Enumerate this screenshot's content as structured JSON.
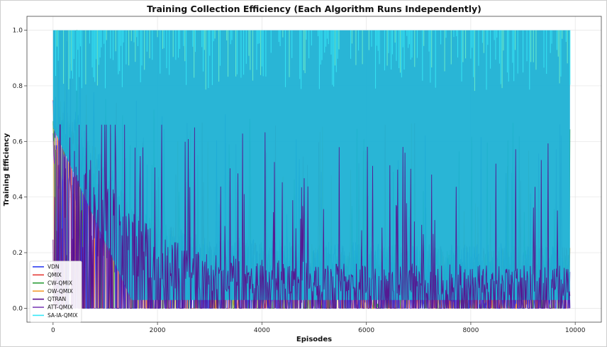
{
  "chart_data": {
    "type": "line",
    "title": "Training Collection Efficiency (Each Algorithm Runs Independently)",
    "xlabel": "Episodes",
    "ylabel": "Training Efficiency",
    "xlim": [
      -500,
      10500
    ],
    "ylim": [
      -0.05,
      1.05
    ],
    "xticks": [
      0,
      2000,
      4000,
      6000,
      8000,
      10000
    ],
    "xtick_labels": [
      "0",
      "2000",
      "4000",
      "6000",
      "8000",
      "10000"
    ],
    "yticks": [
      0.0,
      0.2,
      0.4,
      0.6,
      0.8,
      1.0
    ],
    "ytick_labels": [
      "0.0",
      "0.2",
      "0.4",
      "0.6",
      "0.8",
      "1.0"
    ],
    "grid": true,
    "legend_position": "lower-left",
    "episodes": 9900,
    "series": [
      {
        "name": "VDN",
        "color": "#2b3cf0",
        "trend": {
          "x": [
            0,
            500,
            1000,
            1500,
            2000,
            3000,
            5000,
            9900
          ],
          "y": [
            0.66,
            0.6,
            0.45,
            0.3,
            0.2,
            0.15,
            0.13,
            0.12
          ]
        }
      },
      {
        "name": "QMIX",
        "color": "#e53935",
        "trend": {
          "x": [
            0,
            500,
            1000,
            1500,
            2000,
            3000,
            5000,
            9900
          ],
          "y": [
            0.66,
            0.55,
            0.4,
            0.28,
            0.2,
            0.14,
            0.12,
            0.12
          ]
        }
      },
      {
        "name": "CW-QMIX",
        "color": "#2e9e3a",
        "trend": {
          "x": [
            0,
            500,
            1000,
            1500,
            2000,
            3000,
            5000,
            9900
          ],
          "y": [
            0.62,
            0.55,
            0.42,
            0.3,
            0.2,
            0.14,
            0.12,
            0.12
          ]
        }
      },
      {
        "name": "OW-QMIX",
        "color": "#f39c32",
        "trend": {
          "x": [
            0,
            500,
            1000,
            1500,
            2000,
            3000,
            5000,
            9900
          ],
          "y": [
            0.66,
            0.58,
            0.42,
            0.3,
            0.2,
            0.14,
            0.12,
            0.12
          ]
        }
      },
      {
        "name": "QTRAN",
        "color": "#5a0a8c",
        "trend": {
          "x": [
            0,
            500,
            1000,
            1500,
            2000,
            3000,
            5000,
            9900
          ],
          "y": [
            0.62,
            0.55,
            0.45,
            0.33,
            0.24,
            0.18,
            0.15,
            0.14
          ]
        }
      },
      {
        "name": "ATT-QMIX",
        "color": "#7d3fb8",
        "trend": {
          "x": [
            0,
            500,
            1000,
            1500,
            2000,
            3000,
            5000,
            9900
          ],
          "y": [
            0.55,
            0.45,
            0.35,
            0.25,
            0.18,
            0.14,
            0.12,
            0.12
          ]
        }
      },
      {
        "name": "SA-IA-QMIX",
        "color": "#37e8f7",
        "trend": {
          "x": [
            0,
            500,
            1000,
            2000,
            4000,
            6000,
            8000,
            9900
          ],
          "y": [
            0.85,
            0.8,
            0.78,
            0.75,
            0.74,
            0.74,
            0.74,
            0.74
          ]
        }
      }
    ],
    "overlay_fill_color": "#1eb1d4",
    "overlay_fill_range": {
      "x": [
        0,
        9900
      ],
      "y": [
        0.03,
        1.0
      ]
    }
  }
}
